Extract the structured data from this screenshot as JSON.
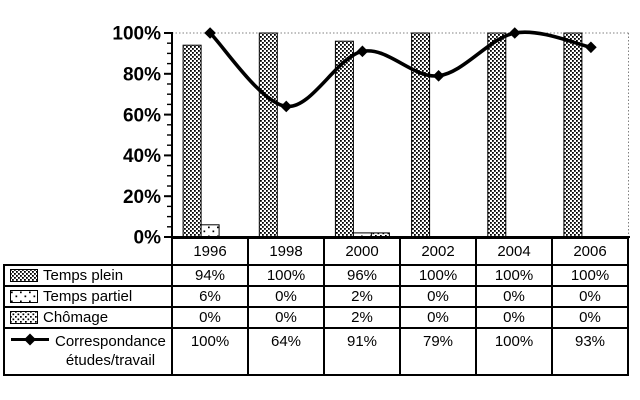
{
  "chart_data": {
    "type": "combo-bar-line",
    "title": "",
    "categories": [
      "1996",
      "1998",
      "2000",
      "2002",
      "2004",
      "2006"
    ],
    "series": [
      {
        "name": "Temps plein",
        "type": "bar",
        "pattern": "dense-dots",
        "values": [
          94,
          100,
          96,
          100,
          100,
          100
        ]
      },
      {
        "name": "Temps partiel",
        "type": "bar",
        "pattern": "sparse-dots",
        "values": [
          6,
          0,
          2,
          0,
          0,
          0
        ]
      },
      {
        "name": "Chômage",
        "type": "bar",
        "pattern": "medium-dots",
        "values": [
          0,
          0,
          2,
          0,
          0,
          0
        ]
      },
      {
        "name": "Correspondance études/travail",
        "type": "line",
        "marker": "diamond",
        "values": [
          100,
          64,
          91,
          79,
          100,
          93
        ]
      }
    ],
    "ylim": [
      0,
      100
    ],
    "y_major_step": 20,
    "y_minor_step": 5,
    "y_tick_labels": [
      "0%",
      "20%",
      "40%",
      "60%",
      "80%",
      "100%"
    ],
    "gridline_at": 100,
    "grid_style": "dotted",
    "legend_position": "attached-table-left-column"
  },
  "table": {
    "header_blank": "",
    "rows": [
      {
        "label": "Temps plein",
        "swatch": "dense-dots",
        "values": [
          "94%",
          "100%",
          "96%",
          "100%",
          "100%",
          "100%"
        ]
      },
      {
        "label": "Temps partiel",
        "swatch": "sparse-dots",
        "values": [
          "6%",
          "0%",
          "2%",
          "0%",
          "0%",
          "0%"
        ]
      },
      {
        "label": "Chômage",
        "swatch": "medium-dots",
        "values": [
          "0%",
          "0%",
          "2%",
          "0%",
          "0%",
          "0%"
        ]
      },
      {
        "label": "Correspondance études/travail",
        "label_lines": [
          "Correspondance",
          "études/travail"
        ],
        "swatch": "line-diamond",
        "values": [
          "100%",
          "64%",
          "91%",
          "79%",
          "100%",
          "93%"
        ]
      }
    ]
  },
  "colors": {
    "ink": "#000000",
    "background": "#ffffff",
    "gridline": "#808080"
  }
}
